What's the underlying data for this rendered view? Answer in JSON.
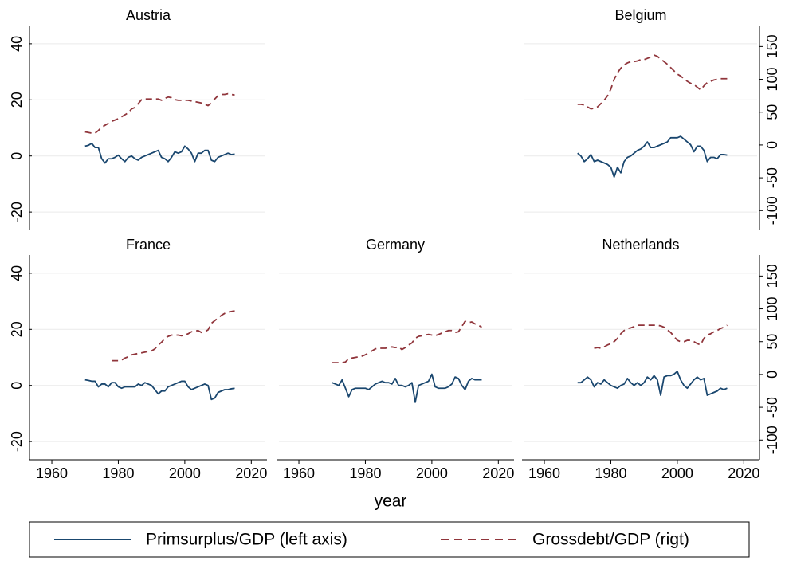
{
  "chart_data": [
    {
      "type": "line",
      "title": "Austria",
      "x": [
        1970,
        1971,
        1972,
        1973,
        1974,
        1975,
        1976,
        1977,
        1978,
        1979,
        1980,
        1981,
        1982,
        1983,
        1984,
        1985,
        1986,
        1987,
        1988,
        1989,
        1990,
        1991,
        1992,
        1993,
        1994,
        1995,
        1996,
        1997,
        1998,
        1999,
        2000,
        2001,
        2002,
        2003,
        2004,
        2005,
        2006,
        2007,
        2008,
        2009,
        2010,
        2011,
        2012,
        2013,
        2014,
        2015
      ],
      "series": [
        {
          "name": "Primsurplus/GDP (left axis)",
          "color": "#1a476f",
          "values": [
            3.5,
            3.8,
            4.5,
            3,
            3,
            -1,
            -2.5,
            -1,
            -1,
            -0.5,
            0.3,
            -1,
            -2,
            -0.5,
            0,
            -1,
            -1.5,
            -0.5,
            0,
            0.5,
            1,
            1.5,
            2,
            -0.5,
            -1,
            -2,
            -0.5,
            1.5,
            1,
            1.5,
            3.5,
            2.5,
            1,
            -2,
            1,
            1,
            2,
            2,
            -1.5,
            -2,
            -0.5,
            0,
            0.5,
            1,
            0.5,
            0.7
          ]
        },
        {
          "name": "Grossdebt/GDP (rigt)",
          "color": "#90353b",
          "dashed": true,
          "axis": "y2",
          "values": [
            20,
            19,
            18,
            18,
            22,
            27,
            30,
            33,
            36,
            38,
            40,
            43,
            46,
            49,
            55,
            57,
            63,
            69,
            70,
            70,
            70,
            70,
            70,
            68,
            71,
            73,
            72,
            69,
            68,
            68,
            68,
            68,
            67,
            66,
            65,
            64,
            62,
            60,
            64,
            70,
            75,
            77,
            77,
            78,
            77,
            76
          ]
        }
      ],
      "xlim": [
        1954,
        2024
      ],
      "ylim": [
        -26.5,
        46.5
      ],
      "yticks": [
        -20,
        0,
        20,
        40
      ],
      "y2lim": [
        -130,
        182
      ],
      "y2ticks": [
        -100,
        -50,
        0,
        50,
        100,
        150
      ],
      "grid": true,
      "show_yticks": true,
      "show_y2ticks": false,
      "show_xaxis": false
    },
    {
      "type": "line",
      "title": "Belgium",
      "x": [
        1970,
        1971,
        1972,
        1973,
        1974,
        1975,
        1976,
        1977,
        1978,
        1979,
        1980,
        1981,
        1982,
        1983,
        1984,
        1985,
        1986,
        1987,
        1988,
        1989,
        1990,
        1991,
        1992,
        1993,
        1994,
        1995,
        1996,
        1997,
        1998,
        1999,
        2000,
        2001,
        2002,
        2003,
        2004,
        2005,
        2006,
        2007,
        2008,
        2009,
        2010,
        2011,
        2012,
        2013,
        2014,
        2015
      ],
      "series": [
        {
          "name": "Primsurplus/GDP (left axis)",
          "color": "#1a476f",
          "values": [
            1,
            0,
            -2,
            -1,
            0.5,
            -2,
            -1.5,
            -2,
            -2.5,
            -3,
            -4,
            -7.5,
            -4,
            -6,
            -2,
            -0.5,
            0,
            1,
            2,
            2.5,
            3.5,
            5,
            3,
            3,
            3.5,
            4,
            4.5,
            5,
            6.5,
            6.5,
            6.5,
            7,
            6,
            5,
            4,
            1.5,
            3.5,
            3.5,
            2,
            -2,
            -0.5,
            -0.5,
            -1,
            0.5,
            0.5,
            0.3
          ]
        },
        {
          "name": "Grossdebt/GDP (rigt)",
          "color": "#90353b",
          "dashed": true,
          "axis": "y2",
          "values": [
            62,
            62,
            61,
            58,
            55,
            56,
            58,
            63,
            68,
            75,
            85,
            100,
            110,
            117,
            122,
            125,
            127,
            127,
            128,
            130,
            130,
            132,
            134,
            137,
            135,
            131,
            127,
            123,
            118,
            113,
            108,
            105,
            101,
            97,
            94,
            92,
            88,
            84,
            90,
            95,
            97,
            99,
            100,
            101,
            101,
            101
          ]
        }
      ],
      "xlim": [
        1954,
        2024
      ],
      "ylim": [
        -26.5,
        46.5
      ],
      "yticks": [
        -20,
        0,
        20,
        40
      ],
      "y2lim": [
        -130,
        182
      ],
      "y2ticks": [
        -100,
        -50,
        0,
        50,
        100,
        150
      ],
      "grid": true,
      "show_yticks": false,
      "show_y2ticks": true,
      "show_xaxis": false
    },
    {
      "type": "line",
      "title": "France",
      "x": [
        1970,
        1971,
        1972,
        1973,
        1974,
        1975,
        1976,
        1977,
        1978,
        1979,
        1980,
        1981,
        1982,
        1983,
        1984,
        1985,
        1986,
        1987,
        1988,
        1989,
        1990,
        1991,
        1992,
        1993,
        1994,
        1995,
        1996,
        1997,
        1998,
        1999,
        2000,
        2001,
        2002,
        2003,
        2004,
        2005,
        2006,
        2007,
        2008,
        2009,
        2010,
        2011,
        2012,
        2013,
        2014,
        2015
      ],
      "series": [
        {
          "name": "Primsurplus/GDP (left axis)",
          "color": "#1a476f",
          "values": [
            2,
            1.8,
            1.5,
            1.5,
            -0.5,
            0.5,
            0.5,
            -0.5,
            1,
            1,
            -0.5,
            -1,
            -0.5,
            -0.5,
            -0.5,
            -0.5,
            0.5,
            0,
            1,
            0.5,
            0,
            -1.5,
            -3,
            -2,
            -2,
            -0.5,
            0,
            0.5,
            1,
            1.5,
            1.5,
            -0.5,
            -1.5,
            -1,
            -0.5,
            0,
            0.5,
            0,
            -5,
            -4.5,
            -2.5,
            -2,
            -1.5,
            -1.5,
            -1.2,
            -1
          ]
        },
        {
          "name": "Grossdebt/GDP (rigt)",
          "color": "#90353b",
          "dashed": true,
          "axis": "y2",
          "values": [
            null,
            null,
            null,
            null,
            null,
            null,
            null,
            null,
            21,
            21,
            21,
            22,
            25,
            27,
            30,
            31,
            32,
            33,
            34,
            35,
            36,
            39,
            45,
            49,
            55,
            58,
            60,
            60,
            60,
            59,
            60,
            62,
            65,
            66,
            67,
            64,
            65,
            68,
            78,
            82,
            86,
            90,
            93,
            95,
            96,
            97
          ]
        }
      ],
      "xlim": [
        1954,
        2024
      ],
      "xticks": [
        1960,
        1980,
        2000,
        2020
      ],
      "ylim": [
        -26.5,
        46.5
      ],
      "yticks": [
        -20,
        0,
        20,
        40
      ],
      "y2lim": [
        -130,
        182
      ],
      "y2ticks": [
        -100,
        -50,
        0,
        50,
        100,
        150
      ],
      "grid": true,
      "show_yticks": true,
      "show_y2ticks": false,
      "show_xaxis": true
    },
    {
      "type": "line",
      "title": "Germany",
      "xlabel": "year",
      "x": [
        1970,
        1971,
        1972,
        1973,
        1974,
        1975,
        1976,
        1977,
        1978,
        1979,
        1980,
        1981,
        1982,
        1983,
        1984,
        1985,
        1986,
        1987,
        1988,
        1989,
        1990,
        1991,
        1992,
        1993,
        1994,
        1995,
        1996,
        1997,
        1998,
        1999,
        2000,
        2001,
        2002,
        2003,
        2004,
        2005,
        2006,
        2007,
        2008,
        2009,
        2010,
        2011,
        2012,
        2013,
        2014,
        2015
      ],
      "series": [
        {
          "name": "Primsurplus/GDP (left axis)",
          "color": "#1a476f",
          "values": [
            1,
            0.5,
            0,
            2,
            -1,
            -4,
            -1.5,
            -1,
            -1,
            -1,
            -1,
            -1.5,
            -0.5,
            0.5,
            1,
            1.5,
            1,
            1,
            0.5,
            2.5,
            0,
            0,
            -0.5,
            0,
            1,
            -6,
            0,
            0.5,
            1,
            1.5,
            4,
            -0.5,
            -1,
            -1,
            -1,
            -0.5,
            0.5,
            3,
            2.5,
            0,
            -1.5,
            1.5,
            2.5,
            2,
            2,
            2
          ]
        },
        {
          "name": "Grossdebt/GDP (rigt)",
          "color": "#90353b",
          "dashed": true,
          "axis": "y2",
          "values": [
            18,
            18,
            18,
            18,
            19,
            24,
            25,
            26,
            27,
            28,
            30,
            33,
            36,
            39,
            40,
            40,
            40,
            41,
            42,
            41,
            42,
            38,
            41,
            45,
            48,
            55,
            58,
            59,
            60,
            61,
            60,
            59,
            61,
            63,
            65,
            67,
            67,
            64,
            65,
            73,
            81,
            79,
            80,
            77,
            75,
            72
          ]
        }
      ],
      "xlim": [
        1954,
        2024
      ],
      "xticks": [
        1960,
        1980,
        2000,
        2020
      ],
      "ylim": [
        -26.5,
        46.5
      ],
      "yticks": [
        -20,
        0,
        20,
        40
      ],
      "y2lim": [
        -130,
        182
      ],
      "y2ticks": [
        -100,
        -50,
        0,
        50,
        100,
        150
      ],
      "grid": true,
      "show_yticks": false,
      "show_y2ticks": false,
      "show_xaxis": true
    },
    {
      "type": "line",
      "title": "Netherlands",
      "x": [
        1970,
        1971,
        1972,
        1973,
        1974,
        1975,
        1976,
        1977,
        1978,
        1979,
        1980,
        1981,
        1982,
        1983,
        1984,
        1985,
        1986,
        1987,
        1988,
        1989,
        1990,
        1991,
        1992,
        1993,
        1994,
        1995,
        1996,
        1997,
        1998,
        1999,
        2000,
        2001,
        2002,
        2003,
        2004,
        2005,
        2006,
        2007,
        2008,
        2009,
        2010,
        2011,
        2012,
        2013,
        2014,
        2015
      ],
      "series": [
        {
          "name": "Primsurplus/GDP (left axis)",
          "color": "#1a476f",
          "values": [
            1,
            1,
            2,
            3,
            2,
            -0.5,
            1,
            0.5,
            2,
            1,
            0,
            -0.5,
            -1,
            0,
            0.5,
            2.5,
            1,
            0,
            1,
            0,
            1,
            3,
            2,
            3.5,
            2,
            -3.5,
            3,
            3.5,
            3.5,
            4,
            5,
            2,
            0,
            -1,
            0.5,
            2,
            3,
            2,
            2.5,
            -3.5,
            -3,
            -2.5,
            -2,
            -1,
            -1.5,
            -1
          ]
        },
        {
          "name": "Grossdebt/GDP (rigt)",
          "color": "#90353b",
          "dashed": true,
          "axis": "y2",
          "values": [
            null,
            null,
            null,
            null,
            null,
            40,
            41,
            40,
            42,
            45,
            47,
            50,
            55,
            62,
            67,
            70,
            71,
            73,
            75,
            75,
            75,
            75,
            75,
            75,
            75,
            74,
            72,
            68,
            64,
            58,
            52,
            50,
            50,
            52,
            52,
            50,
            47,
            45,
            55,
            60,
            62,
            65,
            67,
            70,
            72,
            75
          ]
        }
      ],
      "xlim": [
        1954,
        2024
      ],
      "xticks": [
        1960,
        1980,
        2000,
        2020
      ],
      "ylim": [
        -26.5,
        46.5
      ],
      "yticks": [
        -20,
        0,
        20,
        40
      ],
      "y2lim": [
        -130,
        182
      ],
      "y2ticks": [
        -100,
        -50,
        0,
        50,
        100,
        150
      ],
      "grid": true,
      "show_yticks": false,
      "show_y2ticks": true,
      "show_xaxis": true
    }
  ]
}
